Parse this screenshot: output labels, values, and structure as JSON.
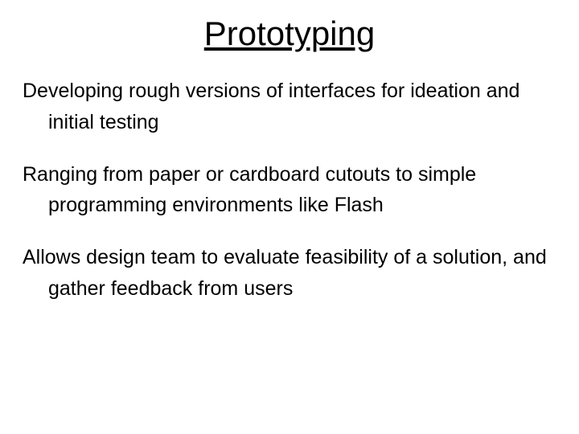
{
  "title": "Prototyping",
  "bullets": [
    "Developing rough versions of interfaces for ideation and initial testing",
    "Ranging from paper or cardboard cutouts to simple programming environments like Flash",
    "Allows design team to evaluate feasibility of a solution, and gather feedback from users"
  ],
  "colors": {
    "background": "#ffffff",
    "text": "#000000"
  },
  "typography": {
    "title_fontsize": 42,
    "body_fontsize": 25,
    "font_family": "Verdana"
  }
}
